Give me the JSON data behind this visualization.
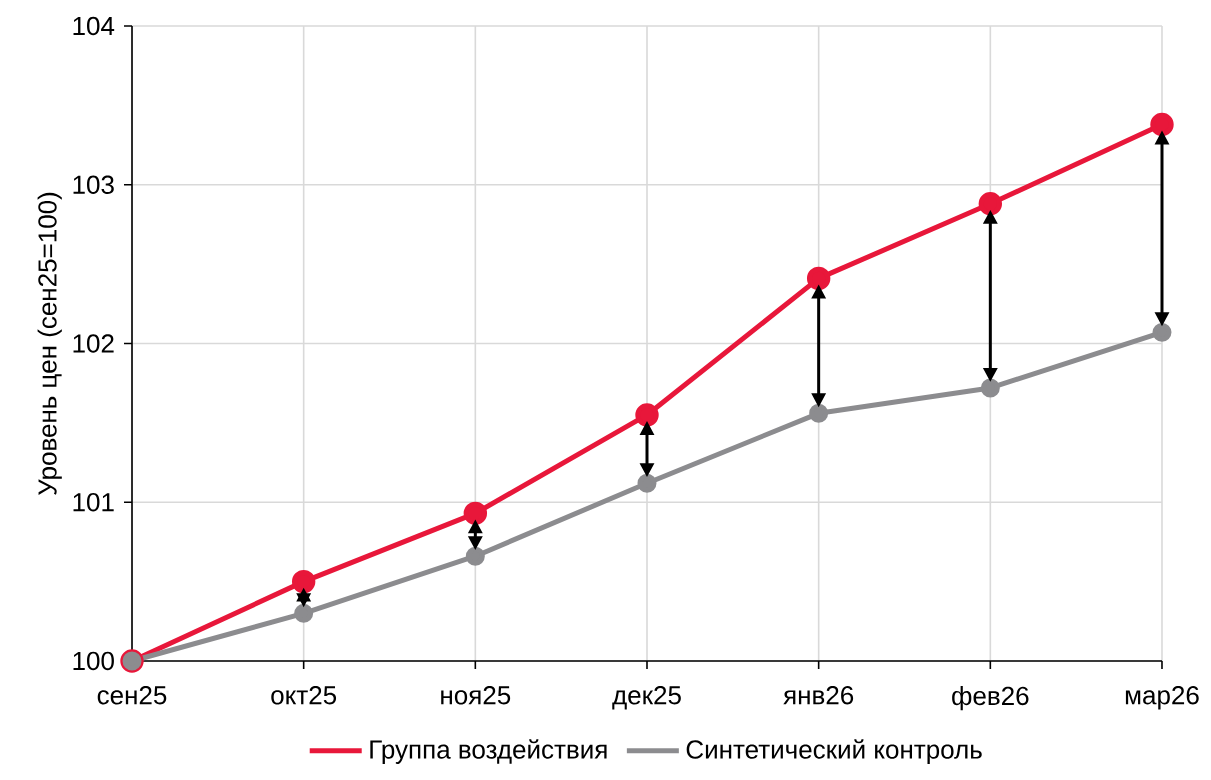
{
  "chart_data": {
    "type": "line",
    "ylabel": "Уровень цен (сен25=100)",
    "categories": [
      "сен25",
      "окт25",
      "ноя25",
      "дек25",
      "янв26",
      "фев26",
      "мар26"
    ],
    "series": [
      {
        "name": "Группа воздействия",
        "color": "#e8173a",
        "values": [
          100,
          100.5,
          100.93,
          101.55,
          102.41,
          102.88,
          103.38
        ]
      },
      {
        "name": "Синтетический контроль",
        "color": "#8c8c8f",
        "values": [
          100,
          100.3,
          100.66,
          101.12,
          101.56,
          101.72,
          102.07
        ]
      }
    ],
    "ylim": [
      100,
      104
    ],
    "yticks": [
      100,
      101,
      102,
      103,
      104
    ],
    "grid": true,
    "legend": "bottom",
    "marker": "circle",
    "line_style": "solid"
  }
}
